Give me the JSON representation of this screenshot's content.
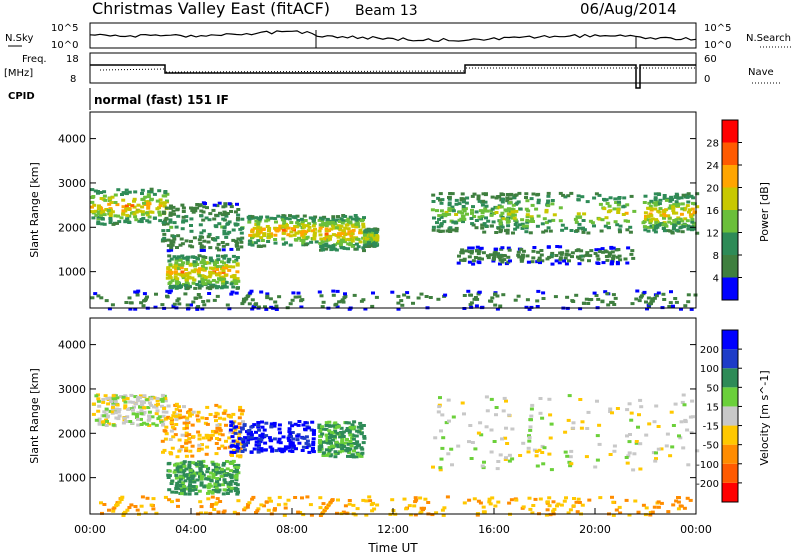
{
  "header": {
    "title": "Christmas Valley East (fitACF)",
    "beam": "Beam 13",
    "date": "06/Aug/2014"
  },
  "status_panels": {
    "nsky_label": "N.Sky",
    "nsearch_label": "N.Search",
    "nsky_ticks": [
      "10^5",
      "10^0"
    ],
    "nsearch_ticks": [
      "10^5",
      "10^0"
    ],
    "freq_label_1": "Freq.",
    "freq_label_2": "[MHz]",
    "freq_ticks": [
      "18",
      "8"
    ],
    "nave_label": "Nave",
    "nave_ticks": [
      "60",
      "0"
    ],
    "cpid_label": "CPID",
    "cpid_value": "normal (fast) 151 IF"
  },
  "colors": {
    "power": [
      "#0000ff",
      "#3f7f3f",
      "#2e8b57",
      "#6bbf3a",
      "#c8c800",
      "#ffa500",
      "#ff5a00",
      "#ff0000"
    ],
    "velocity": [
      "#0000ff",
      "#1e3cc8",
      "#2e8b57",
      "#6bd03a",
      "#c8c8c8",
      "#ffc800",
      "#ff8c00",
      "#ff5a00",
      "#ff0000"
    ]
  },
  "chart_data": [
    {
      "type": "heatmap",
      "name": "power",
      "ylabel": "Slant Range [km]",
      "yticks": [
        "4000",
        "3000",
        "2000",
        "1000"
      ],
      "ylim": [
        180,
        4600
      ],
      "xlim": [
        0,
        24
      ],
      "colorbar_label": "Power [dB]",
      "colorbar_ticks": [
        "28",
        "24",
        "20",
        "16",
        "12",
        "8",
        "4"
      ],
      "clim": [
        0,
        30
      ],
      "regions": [
        {
          "t0": 0.0,
          "t1": 3.0,
          "r0": 2100,
          "r1": 2900,
          "peak": 24
        },
        {
          "t0": 2.8,
          "t1": 6.0,
          "r0": 1500,
          "r1": 2600,
          "peak": 12
        },
        {
          "t0": 3.0,
          "t1": 5.8,
          "r0": 650,
          "r1": 1400,
          "peak": 24
        },
        {
          "t0": 6.2,
          "t1": 8.9,
          "r0": 1600,
          "r1": 2300,
          "peak": 24
        },
        {
          "t0": 9.0,
          "t1": 10.8,
          "r0": 1500,
          "r1": 2300,
          "peak": 24
        },
        {
          "t0": 10.8,
          "t1": 11.3,
          "r0": 1600,
          "r1": 2000,
          "peak": 20
        },
        {
          "t0": 13.5,
          "t1": 17.0,
          "r0": 1900,
          "r1": 2800,
          "peak": 16
        },
        {
          "t0": 14.5,
          "t1": 21.5,
          "r0": 1200,
          "r1": 1600,
          "peak": 8
        },
        {
          "t0": 16.0,
          "t1": 21.5,
          "r0": 1900,
          "r1": 2800,
          "peak": 20
        },
        {
          "t0": 21.8,
          "t1": 24.0,
          "r0": 1900,
          "r1": 2800,
          "peak": 22
        },
        {
          "t0": 0.0,
          "t1": 24.0,
          "r0": 180,
          "r1": 600,
          "peak": 8
        }
      ]
    },
    {
      "type": "heatmap",
      "name": "velocity",
      "ylabel": "Slant Range [km]",
      "yticks": [
        "4000",
        "3000",
        "2000",
        "1000"
      ],
      "ylim": [
        180,
        4600
      ],
      "xlim": [
        0,
        24
      ],
      "xlabel": "Time UT",
      "xticks": [
        "00:00",
        "04:00",
        "08:00",
        "12:00",
        "16:00",
        "20:00",
        "00:00"
      ],
      "colorbar_label": "Velocity [m s^-1]",
      "colorbar_ticks": [
        "200",
        "100",
        "50",
        "15",
        "-15",
        "-50",
        "-100",
        "-200"
      ],
      "clim": [
        -250,
        250
      ],
      "regions": [
        {
          "t0": 0.0,
          "t1": 3.0,
          "r0": 2200,
          "r1": 2900,
          "v": 0
        },
        {
          "t0": 2.8,
          "t1": 6.0,
          "r0": 1500,
          "r1": 2700,
          "v": -40
        },
        {
          "t0": 3.0,
          "t1": 5.8,
          "r0": 650,
          "r1": 1400,
          "v": 60
        },
        {
          "t0": 5.5,
          "t1": 8.8,
          "r0": 1600,
          "r1": 2300,
          "v": 210
        },
        {
          "t0": 9.0,
          "t1": 10.8,
          "r0": 1500,
          "r1": 2300,
          "v": 60
        },
        {
          "t0": 13.5,
          "t1": 24.0,
          "r0": 1200,
          "r1": 2900,
          "v": 0
        },
        {
          "t0": 0.0,
          "t1": 24.0,
          "r0": 180,
          "r1": 600,
          "v": -50
        }
      ]
    }
  ]
}
